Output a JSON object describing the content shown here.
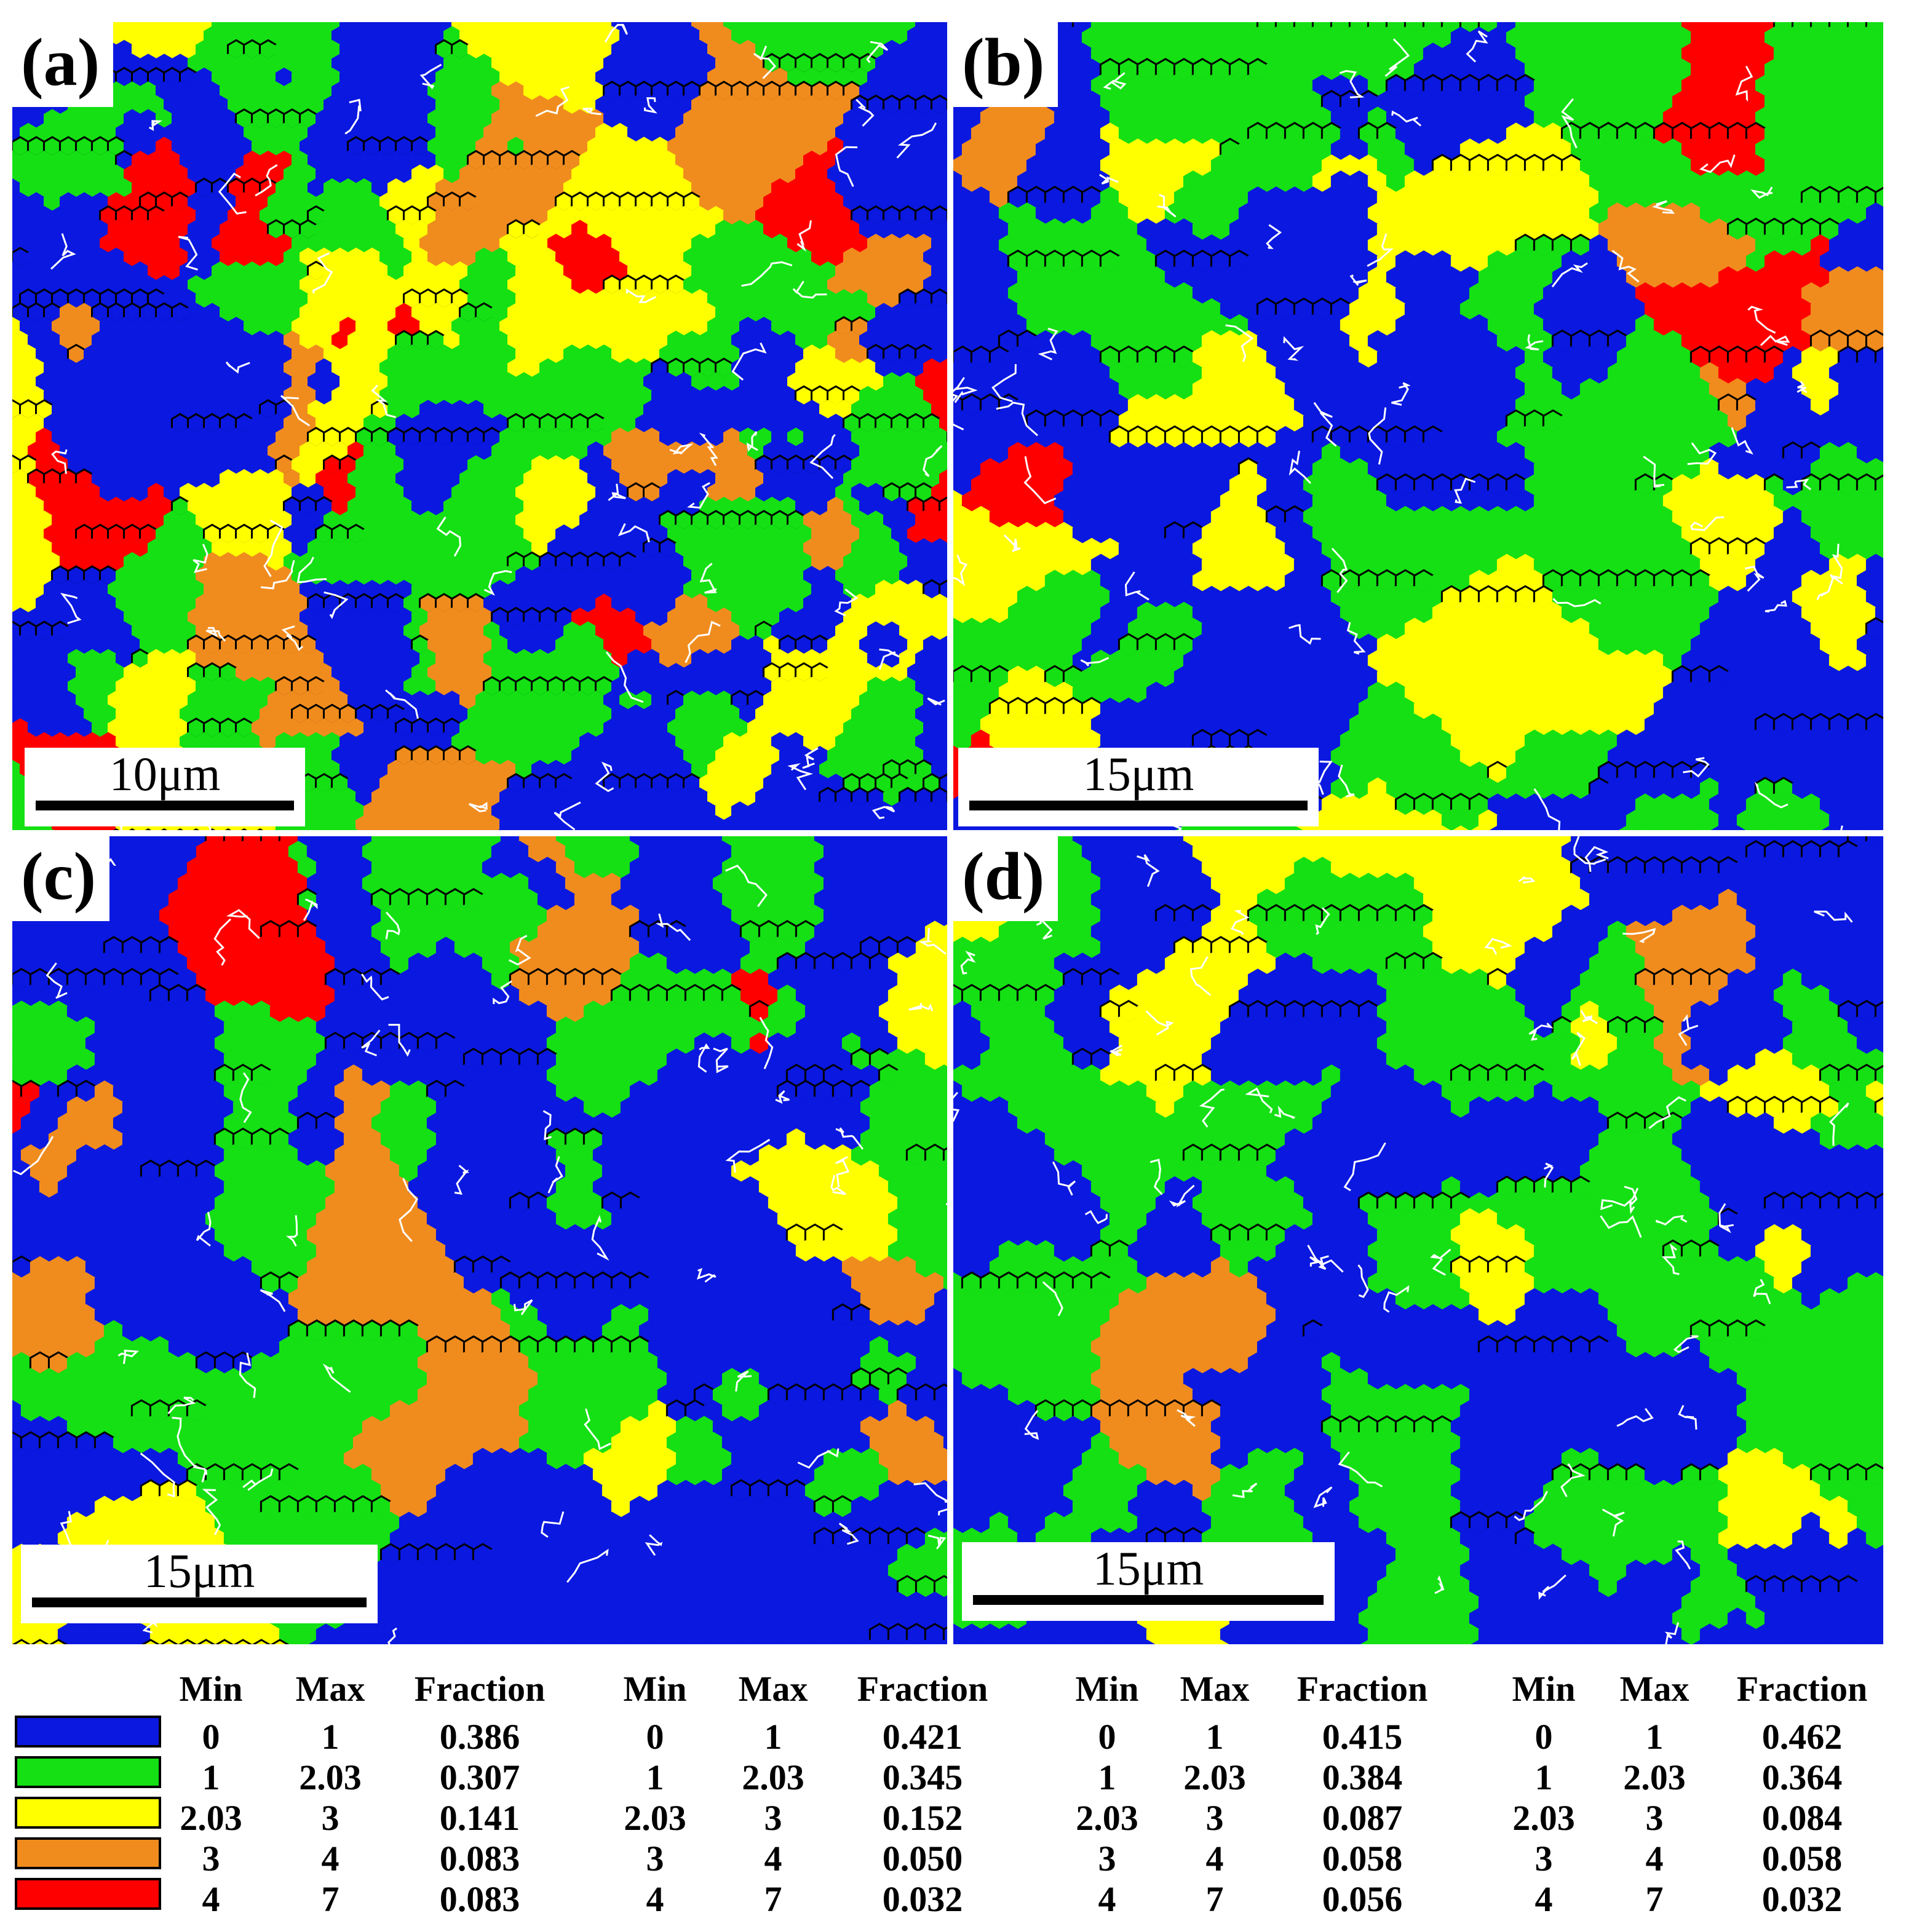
{
  "panels": [
    {
      "label": "(a)",
      "scale_label": "10μm"
    },
    {
      "label": "(b)",
      "scale_label": "15μm"
    },
    {
      "label": "(c)",
      "scale_label": "15μm"
    },
    {
      "label": "(d)",
      "scale_label": "15μm"
    }
  ],
  "colors": {
    "blue": "#0a18e0",
    "green": "#14e014",
    "yellow": "#ffff00",
    "orange": "#f08c1e",
    "red": "#ff0000",
    "grain_boundary": "#000000",
    "twin_boundary": "#ffffff"
  },
  "legend": {
    "headers": {
      "min": "Min",
      "max": "Max",
      "fraction": "Fraction"
    },
    "bins": [
      {
        "color": "#0a18e0",
        "min": "0",
        "max": "1"
      },
      {
        "color": "#14e014",
        "min": "1",
        "max": "2.03"
      },
      {
        "color": "#ffff00",
        "min": "2.03",
        "max": "3"
      },
      {
        "color": "#f08c1e",
        "min": "3",
        "max": "4"
      },
      {
        "color": "#ff0000",
        "min": "4",
        "max": "7"
      }
    ],
    "tables": [
      {
        "fractions": [
          "0.386",
          "0.307",
          "0.141",
          "0.083",
          "0.083"
        ]
      },
      {
        "fractions": [
          "0.421",
          "0.345",
          "0.152",
          "0.050",
          "0.032"
        ]
      },
      {
        "fractions": [
          "0.415",
          "0.384",
          "0.087",
          "0.058",
          "0.056"
        ]
      },
      {
        "fractions": [
          "0.462",
          "0.364",
          "0.084",
          "0.058",
          "0.032"
        ]
      }
    ]
  }
}
